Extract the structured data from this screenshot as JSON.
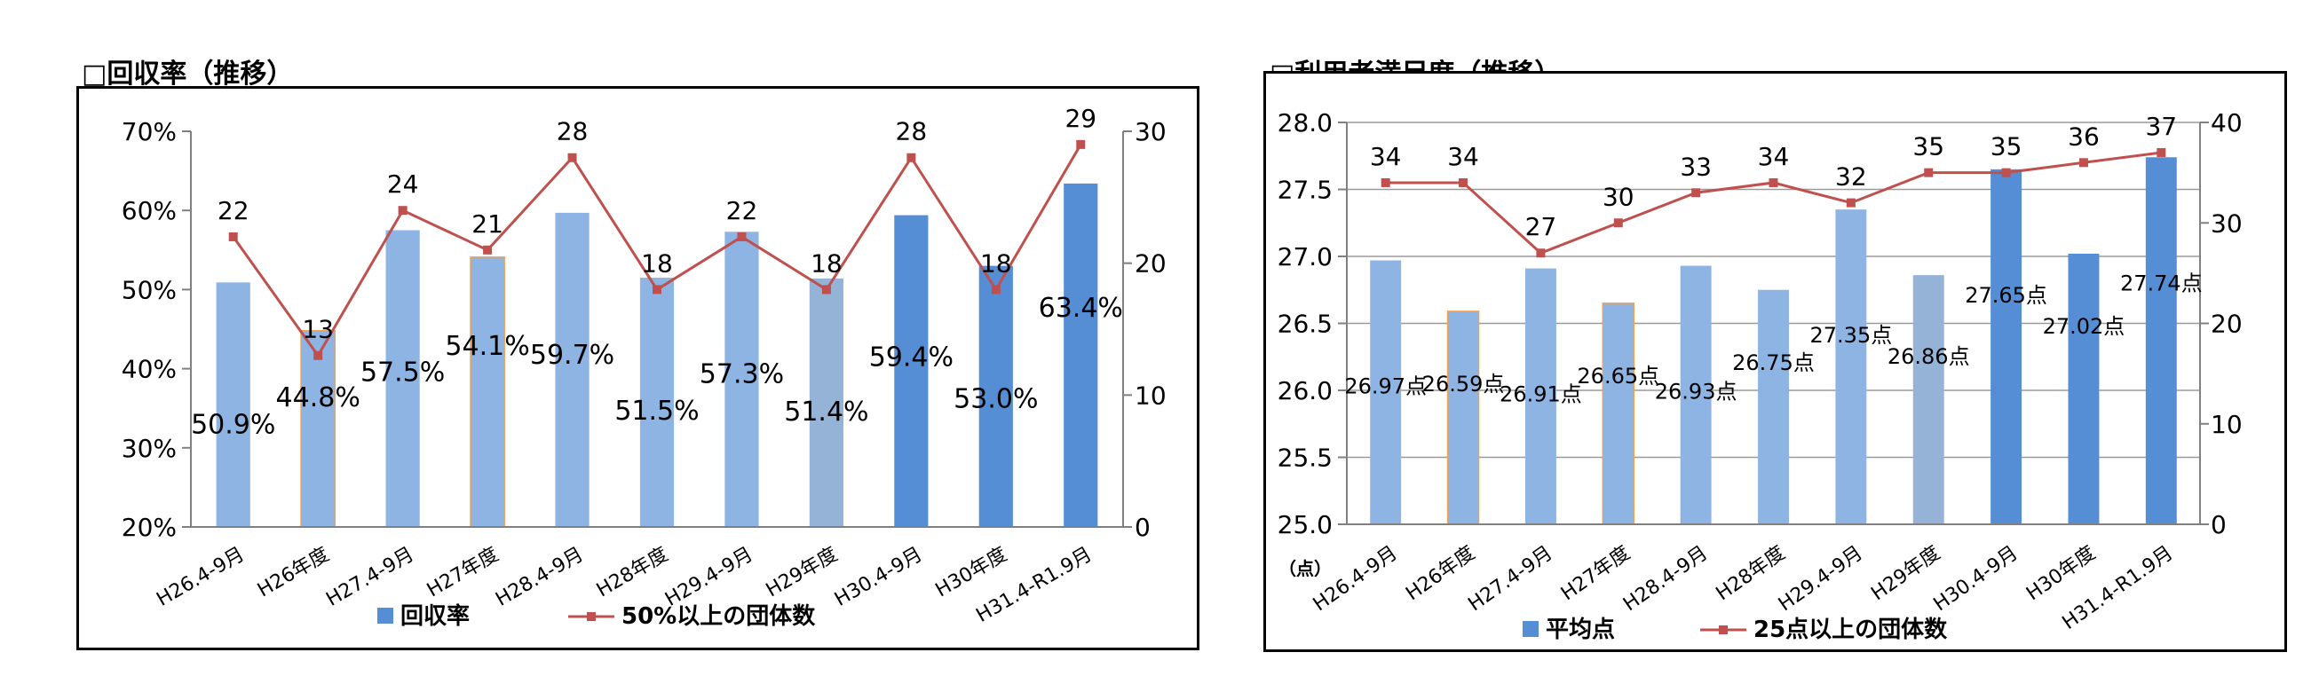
{
  "chart_data": [
    {
      "type": "bar",
      "title": "□回収率（推移）",
      "categories": [
        "H26.4-9月",
        "H26年度",
        "H27.4-9月",
        "H27年度",
        "H28.4-9月",
        "H28年度",
        "H29.4-9月",
        "H29年度",
        "H30.4-9月",
        "H30年度",
        "H31.4-R1.9月"
      ],
      "series": [
        {
          "name": "回収率",
          "kind": "bar",
          "axis": "left",
          "values": [
            50.9,
            44.8,
            57.5,
            54.1,
            59.7,
            51.5,
            57.3,
            51.4,
            59.4,
            53.0,
            63.4
          ],
          "labels": [
            "50.9%",
            "44.8%",
            "57.5%",
            "54.1%",
            "59.7%",
            "51.5%",
            "57.3%",
            "51.4%",
            "59.4%",
            "53.0%",
            "63.4%"
          ],
          "colors": [
            "#8db4e2",
            "#8db4e2",
            "#8db4e2",
            "#8db4e2",
            "#8db4e2",
            "#8db4e2",
            "#8db4e2",
            "#95b3d7",
            "#558ed5",
            "#558ed5",
            "#558ed5"
          ],
          "outlined": [
            false,
            true,
            false,
            true,
            false,
            false,
            false,
            false,
            false,
            false,
            false
          ]
        },
        {
          "name": "50%以上の団体数",
          "kind": "line",
          "axis": "right",
          "values": [
            22,
            13,
            24,
            21,
            28,
            18,
            22,
            18,
            28,
            18,
            29
          ],
          "labels": [
            "22",
            "13",
            "24",
            "21",
            "28",
            "18",
            "22",
            "18",
            "28",
            "18",
            "29"
          ],
          "color": "#c0504d"
        }
      ],
      "ylim": [
        20,
        70
      ],
      "yticks": [
        "20%",
        "30%",
        "40%",
        "50%",
        "60%",
        "70%"
      ],
      "y2lim": [
        0,
        30
      ],
      "y2ticks": [
        "0",
        "10",
        "20",
        "30"
      ],
      "grid": false,
      "legend_position": "bottom"
    },
    {
      "type": "bar",
      "title": "□利用者満足度（推移）",
      "categories": [
        "H26.4-9月",
        "H26年度",
        "H27.4-9月",
        "H27年度",
        "H28.4-9月",
        "H28年度",
        "H29.4-9月",
        "H29年度",
        "H30.4-9月",
        "H30年度",
        "H31.4-R1.9月"
      ],
      "series": [
        {
          "name": "平均点",
          "kind": "bar",
          "axis": "left",
          "values": [
            26.97,
            26.59,
            26.91,
            26.65,
            26.93,
            26.75,
            27.35,
            26.86,
            27.65,
            27.02,
            27.74
          ],
          "labels": [
            "26.97点",
            "26.59点",
            "26.91点",
            "26.65点",
            "26.93点",
            "26.75点",
            "27.35点",
            "26.86点",
            "27.65点",
            "27.02点",
            "27.74点"
          ],
          "colors": [
            "#8db4e2",
            "#8db4e2",
            "#8db4e2",
            "#8db4e2",
            "#8db4e2",
            "#8db4e2",
            "#8db4e2",
            "#95b3d7",
            "#558ed5",
            "#558ed5",
            "#558ed5"
          ],
          "outlined": [
            false,
            true,
            false,
            true,
            false,
            false,
            false,
            false,
            false,
            false,
            false
          ]
        },
        {
          "name": "25点以上の団体数",
          "kind": "line",
          "axis": "right",
          "values": [
            34,
            34,
            27,
            30,
            33,
            34,
            32,
            35,
            35,
            36,
            37
          ],
          "labels": [
            "34",
            "34",
            "27",
            "30",
            "33",
            "34",
            "32",
            "35",
            "35",
            "36",
            "37"
          ],
          "color": "#c0504d"
        }
      ],
      "ylabel": "（点）",
      "ylim": [
        25.0,
        28.0
      ],
      "yticks": [
        "25.0",
        "25.5",
        "26.0",
        "26.5",
        "27.0",
        "27.5",
        "28.0"
      ],
      "y2lim": [
        0,
        40
      ],
      "y2ticks": [
        "0",
        "10",
        "20",
        "30",
        "40"
      ],
      "grid": true,
      "legend_position": "bottom"
    }
  ]
}
